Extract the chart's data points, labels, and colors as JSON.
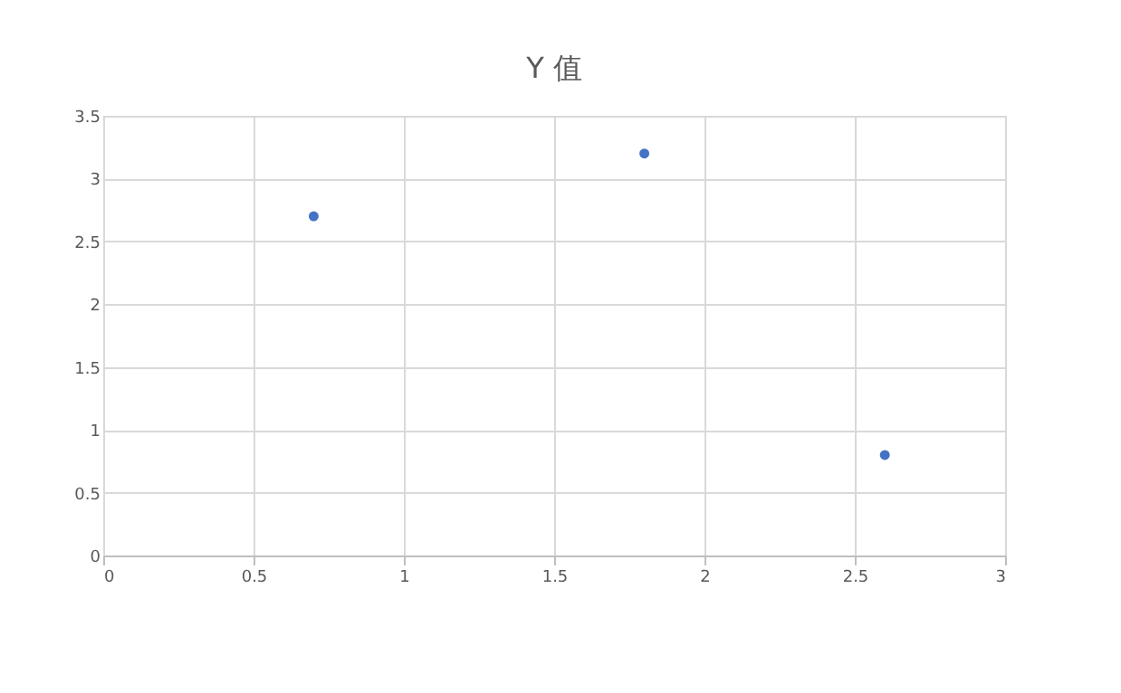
{
  "chart_data": {
    "type": "scatter",
    "title": "Y 值",
    "x": [
      0.7,
      1.8,
      2.6
    ],
    "series": [
      {
        "color": "#4472c4",
        "values": [
          2.7,
          3.2,
          0.8
        ]
      }
    ],
    "xlim": [
      0,
      3
    ],
    "xticks": [
      0,
      0.5,
      1,
      1.5,
      2,
      2.5,
      3
    ],
    "ylim": [
      0,
      3.5
    ],
    "yticks": [
      0,
      0.5,
      1,
      1.5,
      2,
      2.5,
      3,
      3.5
    ],
    "grid": true,
    "marker": "circle"
  }
}
